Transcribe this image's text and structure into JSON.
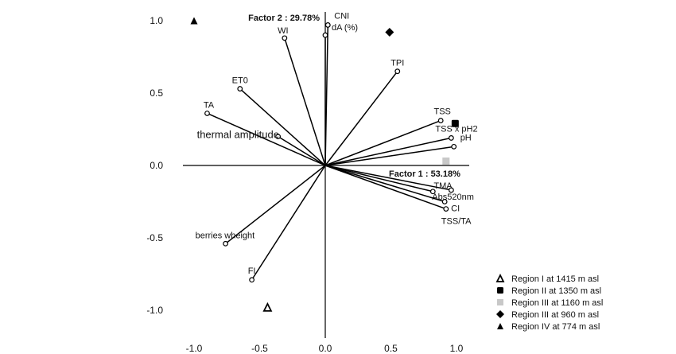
{
  "chart_data": {
    "type": "scatter",
    "subtype": "biplot",
    "xlim": [
      -1.1,
      1.1
    ],
    "ylim": [
      -1.1,
      1.1
    ],
    "x_ticks": [
      -1.0,
      -0.5,
      0.0,
      0.5,
      1.0
    ],
    "y_ticks": [
      1.0,
      0.5,
      0.0,
      -0.5,
      -1.0
    ],
    "x_tick_labels": [
      "-1.0",
      "-0.5",
      "0.0",
      "0.5",
      "1.0"
    ],
    "y_tick_labels": [
      "1.0",
      "0.5",
      "0.0",
      "-0.5",
      "-1.0"
    ],
    "xlabel": "Factor 1 : 53.18%",
    "ylabel": "Factor 2 : 29.78%",
    "grid": false,
    "vectors": [
      {
        "label": "CNI",
        "x": 0.02,
        "y": 0.97
      },
      {
        "label": "dA (%)",
        "x": 0.0,
        "y": 0.9
      },
      {
        "label": "WI",
        "x": -0.31,
        "y": 0.88
      },
      {
        "label": "TPI",
        "x": 0.55,
        "y": 0.65
      },
      {
        "label": "ET0",
        "x": -0.65,
        "y": 0.53
      },
      {
        "label": "TA",
        "x": -0.9,
        "y": 0.36
      },
      {
        "label": "thermal amplitude",
        "x": -0.36,
        "y": 0.2
      },
      {
        "label": "TSS",
        "x": 0.88,
        "y": 0.31
      },
      {
        "label": "TSS x pH2",
        "x": 0.96,
        "y": 0.19
      },
      {
        "label": "pH",
        "x": 0.98,
        "y": 0.13
      },
      {
        "label": "TMA",
        "x": 0.96,
        "y": -0.17
      },
      {
        "label": "Abs520nm",
        "x": 0.82,
        "y": -0.18
      },
      {
        "label": "CI",
        "x": 0.91,
        "y": -0.25
      },
      {
        "label": "TSS/TA",
        "x": 0.92,
        "y": -0.3
      },
      {
        "label": "berries wheight",
        "x": -0.76,
        "y": -0.54
      },
      {
        "label": "FI",
        "x": -0.56,
        "y": -0.79
      }
    ],
    "series": [
      {
        "name": "Region I at 1415 m asl",
        "marker": "open-triangle",
        "color": "#000000",
        "x": -0.44,
        "y": -0.98
      },
      {
        "name": "Region II at 1350 m asl",
        "marker": "square",
        "color": "#000000",
        "x": 0.99,
        "y": 0.29
      },
      {
        "name": "Region III at 1160 m asl",
        "marker": "square",
        "color": "#c8c8c8",
        "x": 0.92,
        "y": 0.03
      },
      {
        "name": "Region III at 960 m asl",
        "marker": "diamond",
        "color": "#000000",
        "x": 0.49,
        "y": 0.92
      },
      {
        "name": "Region IV at 774 m asl",
        "marker": "triangle",
        "color": "#000000",
        "x": -1.0,
        "y": 1.0
      }
    ],
    "legend_position": "bottom-right"
  }
}
